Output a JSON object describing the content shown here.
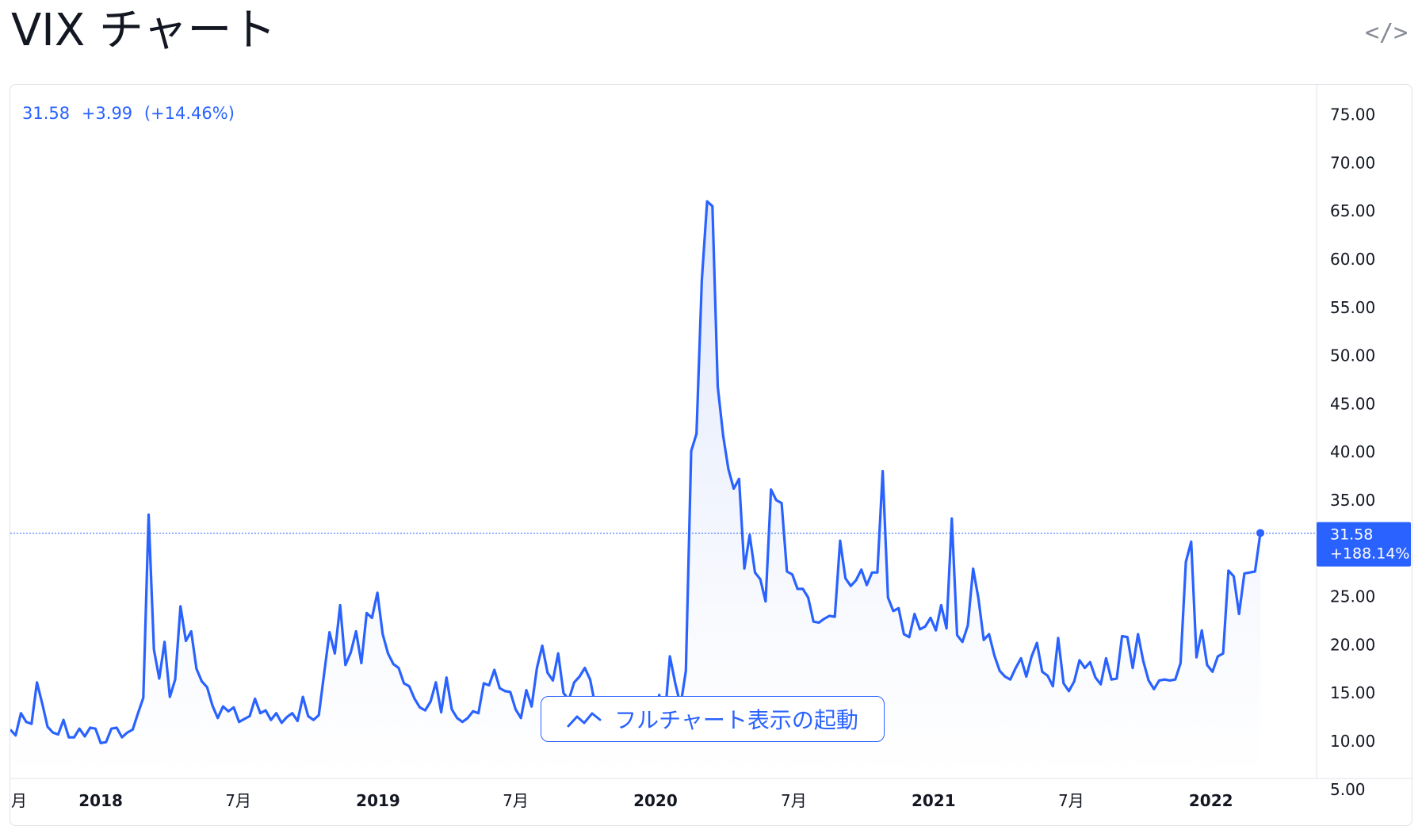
{
  "header": {
    "title": "VIX チャート",
    "embed_icon_glyph": "</>"
  },
  "summary": {
    "price": "31.58",
    "change": "+3.99",
    "change_pct": "(+14.46%)"
  },
  "price_badge": {
    "price": "31.58",
    "change_pct": "+188.14%"
  },
  "full_chart_button": {
    "label": "フルチャート表示の起動",
    "icon": "trend-line-icon"
  },
  "colors": {
    "accent": "#2962ff",
    "text": "#131722",
    "grid_border": "#dfe2e8",
    "fill_top": "#dbe4fb",
    "fill_bottom": "#ffffff"
  },
  "chart_data": {
    "type": "area",
    "title": "",
    "xlabel": "",
    "ylabel": "",
    "ylim": [
      5,
      75
    ],
    "y_ticks": [
      "75.00",
      "70.00",
      "65.00",
      "60.00",
      "55.00",
      "50.00",
      "45.00",
      "40.00",
      "35.00",
      "30.00",
      "25.00",
      "20.00",
      "15.00",
      "10.00",
      "5.00"
    ],
    "x_tick_labels": [
      {
        "label": "月",
        "x": "2017-09-01",
        "bold": false
      },
      {
        "label": "2018",
        "x": "2018-01-01",
        "bold": true
      },
      {
        "label": "7月",
        "x": "2018-07-01",
        "bold": false
      },
      {
        "label": "2019",
        "x": "2019-01-01",
        "bold": true
      },
      {
        "label": "7月",
        "x": "2019-07-01",
        "bold": false
      },
      {
        "label": "2020",
        "x": "2020-01-01",
        "bold": true
      },
      {
        "label": "7月",
        "x": "2020-07-01",
        "bold": false
      },
      {
        "label": "2021",
        "x": "2021-01-01",
        "bold": true
      },
      {
        "label": "7月",
        "x": "2021-07-01",
        "bold": false
      },
      {
        "label": "2022",
        "x": "2022-01-01",
        "bold": true
      }
    ],
    "x_range": [
      "2017-09-04",
      "2022-05-20"
    ],
    "last_value": 31.58,
    "grid": false,
    "legend": "none",
    "series": [
      {
        "x": [
          "2017-09-04",
          "2017-09-11",
          "2017-09-18",
          "2017-09-25",
          "2017-10-02",
          "2017-10-09",
          "2017-10-16",
          "2017-10-23",
          "2017-10-30",
          "2017-11-06",
          "2017-11-13",
          "2017-11-20",
          "2017-11-27",
          "2017-12-04",
          "2017-12-11",
          "2017-12-18",
          "2017-12-25",
          "2018-01-01",
          "2018-01-08",
          "2018-01-15",
          "2018-01-22",
          "2018-01-29",
          "2018-02-05",
          "2018-02-12",
          "2018-02-19",
          "2018-02-26",
          "2018-03-05",
          "2018-03-12",
          "2018-03-19",
          "2018-03-26",
          "2018-04-02",
          "2018-04-09",
          "2018-04-16",
          "2018-04-23",
          "2018-04-30",
          "2018-05-07",
          "2018-05-14",
          "2018-05-21",
          "2018-05-28",
          "2018-06-04",
          "2018-06-11",
          "2018-06-18",
          "2018-06-25",
          "2018-07-02",
          "2018-07-09",
          "2018-07-16",
          "2018-07-23",
          "2018-07-30",
          "2018-08-06",
          "2018-08-13",
          "2018-08-20",
          "2018-08-27",
          "2018-09-03",
          "2018-09-10",
          "2018-09-17",
          "2018-09-24",
          "2018-10-01",
          "2018-10-08",
          "2018-10-15",
          "2018-10-22",
          "2018-10-29",
          "2018-11-05",
          "2018-11-12",
          "2018-11-19",
          "2018-11-26",
          "2018-12-03",
          "2018-12-10",
          "2018-12-17",
          "2018-12-24",
          "2018-12-31",
          "2019-01-07",
          "2019-01-14",
          "2019-01-21",
          "2019-01-28",
          "2019-02-04",
          "2019-02-11",
          "2019-02-18",
          "2019-02-25",
          "2019-03-04",
          "2019-03-11",
          "2019-03-18",
          "2019-03-25",
          "2019-04-01",
          "2019-04-08",
          "2019-04-15",
          "2019-04-22",
          "2019-04-29",
          "2019-05-06",
          "2019-05-13",
          "2019-05-20",
          "2019-05-27",
          "2019-06-03",
          "2019-06-10",
          "2019-06-17",
          "2019-06-24",
          "2019-07-01",
          "2019-07-08",
          "2019-07-15",
          "2019-07-22",
          "2019-07-29",
          "2019-08-05",
          "2019-08-12",
          "2019-08-19",
          "2019-08-26",
          "2019-09-02",
          "2019-09-09",
          "2019-09-16",
          "2019-09-23",
          "2019-09-30",
          "2019-10-07",
          "2019-10-14",
          "2019-10-21",
          "2019-10-28",
          "2019-11-04",
          "2019-11-11",
          "2019-11-18",
          "2019-11-25",
          "2019-12-02",
          "2019-12-09",
          "2019-12-16",
          "2019-12-23",
          "2019-12-30",
          "2020-01-06",
          "2020-01-13",
          "2020-01-20",
          "2020-01-27",
          "2020-02-03",
          "2020-02-10",
          "2020-02-17",
          "2020-02-24",
          "2020-03-02",
          "2020-03-09",
          "2020-03-16",
          "2020-03-23",
          "2020-03-30",
          "2020-04-06",
          "2020-04-13",
          "2020-04-20",
          "2020-04-27",
          "2020-05-04",
          "2020-05-11",
          "2020-05-18",
          "2020-05-25",
          "2020-06-01",
          "2020-06-08",
          "2020-06-15",
          "2020-06-22",
          "2020-06-29",
          "2020-07-06",
          "2020-07-13",
          "2020-07-20",
          "2020-07-27",
          "2020-08-03",
          "2020-08-10",
          "2020-08-17",
          "2020-08-24",
          "2020-08-31",
          "2020-09-07",
          "2020-09-14",
          "2020-09-21",
          "2020-09-28",
          "2020-10-05",
          "2020-10-12",
          "2020-10-19",
          "2020-10-26",
          "2020-11-02",
          "2020-11-09",
          "2020-11-16",
          "2020-11-23",
          "2020-11-30",
          "2020-12-07",
          "2020-12-14",
          "2020-12-21",
          "2020-12-28",
          "2021-01-04",
          "2021-01-11",
          "2021-01-18",
          "2021-01-25",
          "2021-02-01",
          "2021-02-08",
          "2021-02-15",
          "2021-02-22",
          "2021-03-01",
          "2021-03-08",
          "2021-03-15",
          "2021-03-22",
          "2021-03-29",
          "2021-04-05",
          "2021-04-12",
          "2021-04-19",
          "2021-04-26",
          "2021-05-03",
          "2021-05-10",
          "2021-05-17",
          "2021-05-24",
          "2021-05-31",
          "2021-06-07",
          "2021-06-14",
          "2021-06-21",
          "2021-06-28",
          "2021-07-05",
          "2021-07-12",
          "2021-07-19",
          "2021-07-26",
          "2021-08-02",
          "2021-08-09",
          "2021-08-16",
          "2021-08-23",
          "2021-08-30",
          "2021-09-06",
          "2021-09-13",
          "2021-09-20",
          "2021-09-27",
          "2021-10-04",
          "2021-10-11",
          "2021-10-18",
          "2021-10-25",
          "2021-11-01",
          "2021-11-08",
          "2021-11-15",
          "2021-11-22",
          "2021-11-29",
          "2021-12-06",
          "2021-12-13",
          "2021-12-20",
          "2021-12-27",
          "2022-01-03",
          "2022-01-10",
          "2022-01-17",
          "2022-01-24",
          "2022-01-31",
          "2022-02-07",
          "2022-02-14",
          "2022-02-21",
          "2022-02-28",
          "2022-03-07"
        ],
        "values": [
          11.2,
          10.6,
          12.9,
          12.0,
          11.8,
          16.1,
          13.9,
          11.5,
          10.9,
          10.7,
          12.2,
          10.4,
          10.4,
          11.3,
          10.5,
          11.4,
          11.3,
          9.8,
          9.9,
          11.3,
          11.4,
          10.4,
          10.9,
          11.2,
          12.9,
          14.5,
          33.5,
          19.5,
          16.5,
          20.3,
          14.6,
          16.4,
          24.0,
          20.4,
          21.4,
          17.5,
          16.2,
          15.6,
          13.7,
          12.4,
          13.6,
          13.1,
          13.5,
          12.0,
          12.3,
          12.6,
          14.4,
          12.9,
          13.2,
          12.2,
          12.9,
          11.9,
          12.5,
          12.9,
          12.1,
          14.6,
          12.6,
          12.2,
          12.7,
          17.0,
          21.3,
          19.1,
          24.1,
          17.9,
          19.2,
          21.4,
          18.1,
          23.3,
          22.8,
          25.4,
          21.1,
          19.1,
          18.0,
          17.6,
          16.0,
          15.7,
          14.4,
          13.5,
          13.2,
          14.1,
          16.1,
          13.0,
          16.6,
          13.3,
          12.4,
          12.0,
          12.4,
          13.1,
          12.9,
          16.0,
          15.8,
          17.4,
          15.5,
          15.2,
          15.1,
          13.3,
          12.4,
          15.3,
          13.6,
          17.6,
          19.9,
          17.1,
          16.3,
          19.1,
          15.0,
          14.3,
          16.1,
          16.7,
          17.6,
          16.4,
          13.6,
          12.8,
          12.3,
          12.1,
          12.3,
          12.7,
          13.7,
          12.7,
          13.2,
          14.4,
          13.4,
          12.5,
          14.8,
          12.1,
          18.8,
          16.0,
          13.7,
          17.3,
          40.1,
          41.9,
          57.8,
          66.0,
          65.5,
          46.8,
          41.7,
          38.2,
          36.2,
          37.2,
          27.9,
          31.4,
          27.5,
          26.8,
          24.5,
          36.1,
          35.0,
          34.7,
          27.6,
          27.3,
          25.8,
          25.8,
          24.9,
          22.4,
          22.3,
          22.7,
          23.0,
          22.9,
          30.8,
          26.9,
          26.1,
          26.7,
          27.8,
          26.2,
          27.5,
          27.5,
          38.0,
          24.9,
          23.5,
          23.8,
          21.1,
          20.8,
          23.2,
          21.6,
          21.9,
          22.8,
          21.5,
          24.1,
          21.7,
          33.1,
          21.0,
          20.3,
          22.0,
          27.9,
          24.8,
          20.5,
          21.1,
          18.9,
          17.3,
          16.7,
          16.4,
          17.6,
          18.6,
          16.7,
          18.8,
          20.2,
          17.2,
          16.8,
          15.7,
          20.7,
          16.0,
          15.2,
          16.2,
          18.4,
          17.6,
          18.2,
          16.6,
          15.9,
          18.6,
          16.4,
          16.5,
          20.9,
          20.8,
          17.6,
          21.1,
          18.3,
          16.3,
          15.4,
          16.3,
          16.4,
          16.3,
          16.4,
          18.1,
          28.6,
          30.7,
          18.7,
          21.5,
          17.9,
          17.2,
          18.8,
          19.1,
          27.7,
          27.1,
          23.2,
          27.4,
          27.5,
          27.6,
          31.6
        ]
      }
    ]
  }
}
